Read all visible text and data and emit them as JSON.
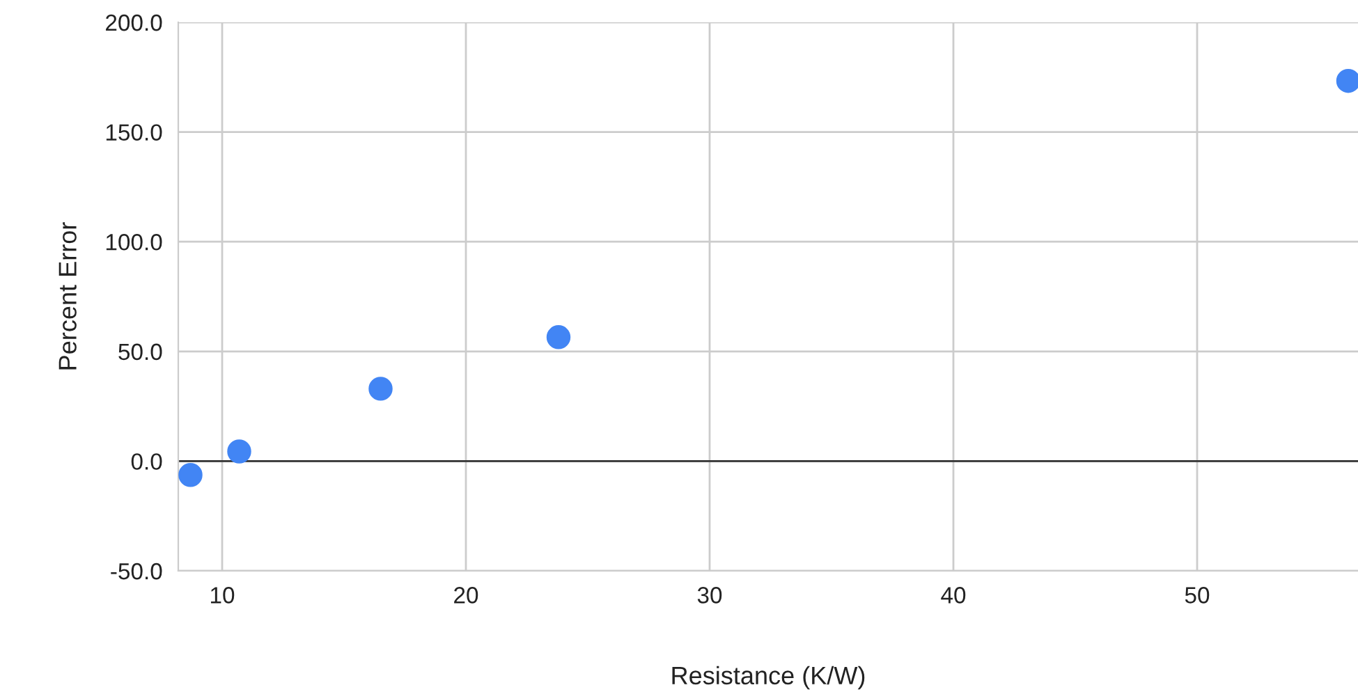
{
  "chart_data": {
    "type": "scatter",
    "xlabel": "Resistance (K/W)",
    "ylabel": "Percent Error",
    "x": [
      8.7,
      10.7,
      16.5,
      23.8,
      56.2
    ],
    "series": [
      {
        "color": "#4285f4",
        "values": [
          -6.3,
          4.4,
          33.0,
          56.5,
          173.3
        ]
      }
    ],
    "xlim": [
      8.2,
      56.6
    ],
    "xticks": [
      10,
      20,
      30,
      40,
      50
    ],
    "ylim": [
      -50,
      200
    ],
    "yticks": [
      {
        "value": -50,
        "label": "-50.0"
      },
      {
        "value": 0,
        "label": "0.0"
      },
      {
        "value": 50,
        "label": "50.0"
      },
      {
        "value": 100,
        "label": "100.0"
      },
      {
        "value": 150,
        "label": "150.0"
      },
      {
        "value": 200,
        "label": "200.0"
      }
    ],
    "ref_lines": [
      {
        "axis": "y",
        "value": 0,
        "color": "#333333"
      }
    ],
    "grid": true,
    "marker": "circle",
    "legend": false
  }
}
